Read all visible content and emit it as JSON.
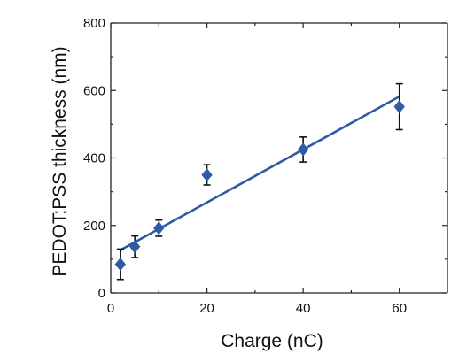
{
  "chart_data": {
    "type": "scatter",
    "xlabel": "Charge (nC)",
    "ylabel": "PEDOT:PSS thickness (nm)",
    "xlim": [
      0,
      70
    ],
    "ylim": [
      0,
      800
    ],
    "x_ticks": [
      0,
      20,
      40,
      60
    ],
    "y_ticks": [
      0,
      200,
      400,
      600,
      800
    ],
    "x_tick_labels": [
      "0",
      "20",
      "40",
      "60"
    ],
    "y_tick_labels": [
      "0",
      "200",
      "400",
      "600",
      "800"
    ],
    "grid": false,
    "marker": "diamond",
    "series_color": "#2f5ba4",
    "series": [
      {
        "x": [
          2,
          5,
          10,
          20,
          40,
          60
        ],
        "y": [
          85,
          137,
          192,
          350,
          425,
          552
        ],
        "err": [
          45,
          32,
          24,
          30,
          37,
          68
        ]
      }
    ],
    "fit_line": {
      "x": [
        2,
        60
      ],
      "y": [
        127,
        582
      ]
    }
  }
}
